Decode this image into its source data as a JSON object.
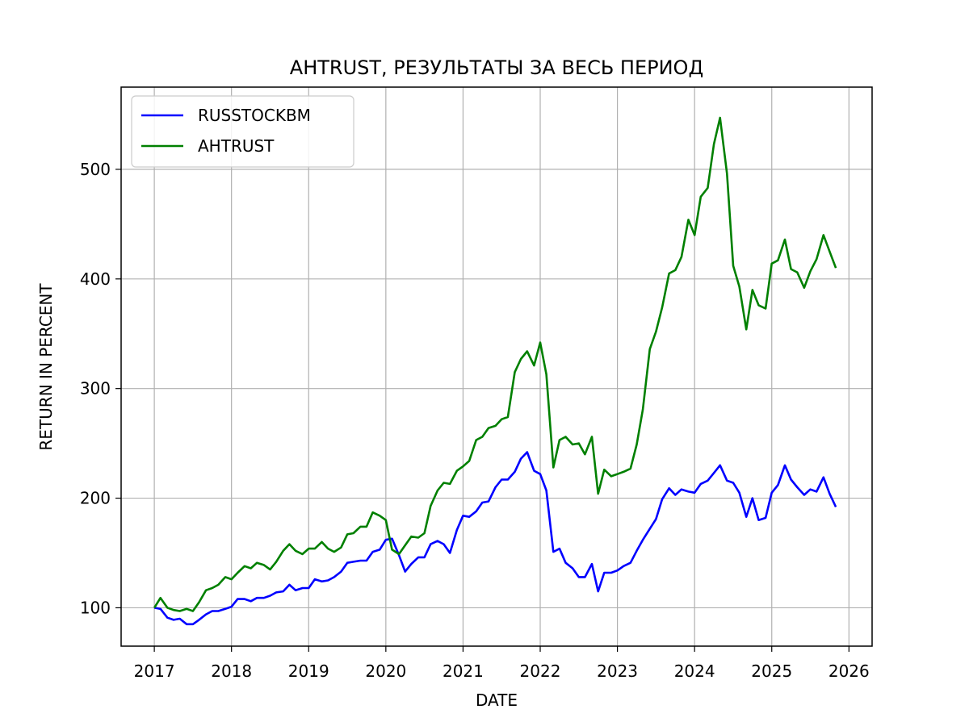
{
  "chart_data": {
    "type": "line",
    "title": "AHTRUST, РЕЗУЛЬТАТЫ ЗА ВЕСЬ ПЕРИОД",
    "xlabel": "DATE",
    "ylabel": "RETURN IN PERCENT",
    "xlim": [
      2016.57,
      2026.3
    ],
    "ylim": [
      65,
      575
    ],
    "x_ticks": [
      2017,
      2018,
      2019,
      2020,
      2021,
      2022,
      2023,
      2024,
      2025,
      2026
    ],
    "y_ticks": [
      100,
      200,
      300,
      400,
      500
    ],
    "grid": true,
    "legend_position": "upper-left",
    "series": [
      {
        "name": "RUSSTOCKBM",
        "color": "#0000ff",
        "points": [
          [
            2017.0,
            100
          ],
          [
            2017.08,
            99
          ],
          [
            2017.17,
            91
          ],
          [
            2017.25,
            89
          ],
          [
            2017.33,
            90
          ],
          [
            2017.42,
            85
          ],
          [
            2017.5,
            85
          ],
          [
            2017.58,
            89
          ],
          [
            2017.67,
            94
          ],
          [
            2017.75,
            97
          ],
          [
            2017.83,
            97
          ],
          [
            2017.92,
            99
          ],
          [
            2018.0,
            101
          ],
          [
            2018.08,
            108
          ],
          [
            2018.17,
            108
          ],
          [
            2018.25,
            106
          ],
          [
            2018.33,
            109
          ],
          [
            2018.42,
            109
          ],
          [
            2018.5,
            111
          ],
          [
            2018.58,
            114
          ],
          [
            2018.67,
            115
          ],
          [
            2018.75,
            121
          ],
          [
            2018.83,
            116
          ],
          [
            2018.92,
            118
          ],
          [
            2019.0,
            118
          ],
          [
            2019.08,
            126
          ],
          [
            2019.17,
            124
          ],
          [
            2019.25,
            125
          ],
          [
            2019.33,
            128
          ],
          [
            2019.42,
            133
          ],
          [
            2019.5,
            141
          ],
          [
            2019.58,
            142
          ],
          [
            2019.67,
            143
          ],
          [
            2019.75,
            143
          ],
          [
            2019.83,
            151
          ],
          [
            2019.92,
            153
          ],
          [
            2020.0,
            162
          ],
          [
            2020.08,
            163
          ],
          [
            2020.17,
            148
          ],
          [
            2020.25,
            133
          ],
          [
            2020.33,
            140
          ],
          [
            2020.42,
            146
          ],
          [
            2020.5,
            146
          ],
          [
            2020.58,
            158
          ],
          [
            2020.67,
            161
          ],
          [
            2020.75,
            158
          ],
          [
            2020.83,
            150
          ],
          [
            2020.92,
            171
          ],
          [
            2021.0,
            184
          ],
          [
            2021.08,
            183
          ],
          [
            2021.17,
            188
          ],
          [
            2021.25,
            196
          ],
          [
            2021.33,
            197
          ],
          [
            2021.42,
            210
          ],
          [
            2021.5,
            217
          ],
          [
            2021.58,
            217
          ],
          [
            2021.67,
            224
          ],
          [
            2021.75,
            236
          ],
          [
            2021.83,
            242
          ],
          [
            2021.92,
            225
          ],
          [
            2022.0,
            222
          ],
          [
            2022.08,
            207
          ],
          [
            2022.17,
            151
          ],
          [
            2022.25,
            154
          ],
          [
            2022.33,
            141
          ],
          [
            2022.42,
            136
          ],
          [
            2022.5,
            128
          ],
          [
            2022.58,
            128
          ],
          [
            2022.67,
            140
          ],
          [
            2022.75,
            115
          ],
          [
            2022.83,
            132
          ],
          [
            2022.92,
            132
          ],
          [
            2023.0,
            134
          ],
          [
            2023.08,
            138
          ],
          [
            2023.17,
            141
          ],
          [
            2023.25,
            152
          ],
          [
            2023.33,
            162
          ],
          [
            2023.42,
            172
          ],
          [
            2023.5,
            181
          ],
          [
            2023.58,
            199
          ],
          [
            2023.67,
            209
          ],
          [
            2023.75,
            203
          ],
          [
            2023.83,
            208
          ],
          [
            2023.92,
            206
          ],
          [
            2024.0,
            205
          ],
          [
            2024.08,
            213
          ],
          [
            2024.17,
            216
          ],
          [
            2024.25,
            223
          ],
          [
            2024.33,
            230
          ],
          [
            2024.42,
            216
          ],
          [
            2024.5,
            214
          ],
          [
            2024.58,
            205
          ],
          [
            2024.67,
            183
          ],
          [
            2024.75,
            200
          ],
          [
            2024.83,
            180
          ],
          [
            2024.92,
            182
          ],
          [
            2025.0,
            205
          ],
          [
            2025.08,
            212
          ],
          [
            2025.17,
            230
          ],
          [
            2025.25,
            217
          ],
          [
            2025.33,
            210
          ],
          [
            2025.42,
            203
          ],
          [
            2025.5,
            208
          ],
          [
            2025.58,
            206
          ],
          [
            2025.67,
            219
          ],
          [
            2025.75,
            204
          ],
          [
            2025.83,
            192
          ]
        ]
      },
      {
        "name": "AHTRUST",
        "color": "#008000",
        "points": [
          [
            2017.0,
            100
          ],
          [
            2017.08,
            109
          ],
          [
            2017.17,
            100
          ],
          [
            2017.25,
            98
          ],
          [
            2017.33,
            97
          ],
          [
            2017.42,
            99
          ],
          [
            2017.5,
            97
          ],
          [
            2017.58,
            105
          ],
          [
            2017.67,
            116
          ],
          [
            2017.75,
            118
          ],
          [
            2017.83,
            121
          ],
          [
            2017.92,
            128
          ],
          [
            2018.0,
            126
          ],
          [
            2018.08,
            132
          ],
          [
            2018.17,
            138
          ],
          [
            2018.25,
            136
          ],
          [
            2018.33,
            141
          ],
          [
            2018.42,
            139
          ],
          [
            2018.5,
            135
          ],
          [
            2018.58,
            142
          ],
          [
            2018.67,
            152
          ],
          [
            2018.75,
            158
          ],
          [
            2018.83,
            152
          ],
          [
            2018.92,
            149
          ],
          [
            2019.0,
            154
          ],
          [
            2019.08,
            154
          ],
          [
            2019.17,
            160
          ],
          [
            2019.25,
            154
          ],
          [
            2019.33,
            151
          ],
          [
            2019.42,
            155
          ],
          [
            2019.5,
            167
          ],
          [
            2019.58,
            168
          ],
          [
            2019.67,
            174
          ],
          [
            2019.75,
            174
          ],
          [
            2019.83,
            187
          ],
          [
            2019.92,
            184
          ],
          [
            2020.0,
            180
          ],
          [
            2020.08,
            153
          ],
          [
            2020.17,
            149
          ],
          [
            2020.25,
            157
          ],
          [
            2020.33,
            165
          ],
          [
            2020.42,
            164
          ],
          [
            2020.5,
            168
          ],
          [
            2020.58,
            193
          ],
          [
            2020.67,
            207
          ],
          [
            2020.75,
            214
          ],
          [
            2020.83,
            213
          ],
          [
            2020.92,
            225
          ],
          [
            2021.0,
            229
          ],
          [
            2021.08,
            234
          ],
          [
            2021.17,
            253
          ],
          [
            2021.25,
            256
          ],
          [
            2021.33,
            264
          ],
          [
            2021.42,
            266
          ],
          [
            2021.5,
            272
          ],
          [
            2021.58,
            274
          ],
          [
            2021.67,
            315
          ],
          [
            2021.75,
            327
          ],
          [
            2021.83,
            334
          ],
          [
            2021.92,
            321
          ],
          [
            2022.0,
            342
          ],
          [
            2022.08,
            313
          ],
          [
            2022.17,
            228
          ],
          [
            2022.25,
            253
          ],
          [
            2022.33,
            256
          ],
          [
            2022.42,
            249
          ],
          [
            2022.5,
            250
          ],
          [
            2022.58,
            240
          ],
          [
            2022.67,
            256
          ],
          [
            2022.75,
            204
          ],
          [
            2022.83,
            226
          ],
          [
            2022.92,
            220
          ],
          [
            2023.0,
            222
          ],
          [
            2023.08,
            224
          ],
          [
            2023.17,
            227
          ],
          [
            2023.25,
            249
          ],
          [
            2023.33,
            281
          ],
          [
            2023.42,
            336
          ],
          [
            2023.5,
            352
          ],
          [
            2023.58,
            374
          ],
          [
            2023.67,
            405
          ],
          [
            2023.75,
            408
          ],
          [
            2023.83,
            420
          ],
          [
            2023.92,
            454
          ],
          [
            2024.0,
            440
          ],
          [
            2024.08,
            475
          ],
          [
            2024.17,
            483
          ],
          [
            2024.25,
            523
          ],
          [
            2024.33,
            547
          ],
          [
            2024.42,
            496
          ],
          [
            2024.5,
            412
          ],
          [
            2024.58,
            393
          ],
          [
            2024.67,
            354
          ],
          [
            2024.75,
            390
          ],
          [
            2024.83,
            376
          ],
          [
            2024.92,
            373
          ],
          [
            2025.0,
            414
          ],
          [
            2025.08,
            417
          ],
          [
            2025.17,
            436
          ],
          [
            2025.25,
            409
          ],
          [
            2025.33,
            406
          ],
          [
            2025.42,
            392
          ],
          [
            2025.5,
            407
          ],
          [
            2025.58,
            418
          ],
          [
            2025.67,
            440
          ],
          [
            2025.75,
            425
          ],
          [
            2025.83,
            410
          ]
        ]
      }
    ]
  }
}
